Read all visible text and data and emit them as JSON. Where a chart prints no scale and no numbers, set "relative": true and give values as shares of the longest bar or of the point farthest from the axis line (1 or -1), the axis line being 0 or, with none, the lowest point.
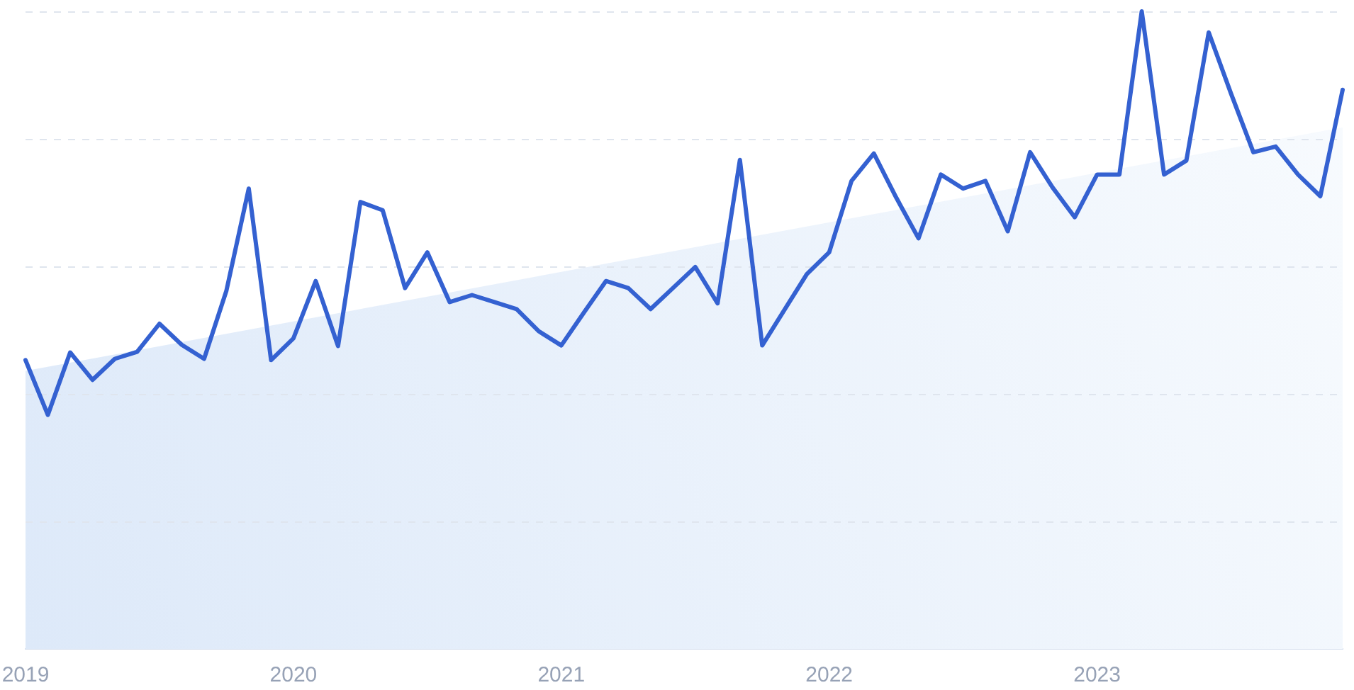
{
  "chart_data": {
    "type": "line",
    "relative": true,
    "x": [
      "2019-01",
      "2019-02",
      "2019-03",
      "2019-04",
      "2019-05",
      "2019-06",
      "2019-07",
      "2019-08",
      "2019-09",
      "2019-10",
      "2019-11",
      "2019-12",
      "2020-01",
      "2020-02",
      "2020-03",
      "2020-04",
      "2020-05",
      "2020-06",
      "2020-07",
      "2020-08",
      "2020-09",
      "2020-10",
      "2020-11",
      "2020-12",
      "2021-01",
      "2021-02",
      "2021-03",
      "2021-04",
      "2021-05",
      "2021-06",
      "2021-07",
      "2021-08",
      "2021-09",
      "2021-10",
      "2021-11",
      "2021-12",
      "2022-01",
      "2022-02",
      "2022-03",
      "2022-04",
      "2022-05",
      "2022-06",
      "2022-07",
      "2022-08",
      "2022-09",
      "2022-10",
      "2022-11",
      "2022-12",
      "2023-01",
      "2023-02",
      "2023-03",
      "2023-04",
      "2023-05",
      "2023-06",
      "2023-07",
      "2023-08",
      "2023-09",
      "2023-10",
      "2023-11",
      "2023-12"
    ],
    "xlim": [
      "2019-01",
      "2023-12"
    ],
    "xticks": [
      "2019",
      "2020",
      "2021",
      "2022",
      "2023"
    ],
    "grid": "y",
    "tick_labels": "x",
    "series": [
      {
        "type": "area",
        "color": "#dde9f9",
        "x": [
          "2019-01",
          "2023-12"
        ],
        "values": [
          0.436,
          0.818
        ]
      },
      {
        "color": "#3461d1",
        "values": [
          0.453,
          0.367,
          0.465,
          0.422,
          0.455,
          0.466,
          0.51,
          0.477,
          0.455,
          0.562,
          0.722,
          0.453,
          0.487,
          0.577,
          0.475,
          0.701,
          0.688,
          0.566,
          0.622,
          0.544,
          0.555,
          0.544,
          0.533,
          0.498,
          0.476,
          0.527,
          0.577,
          0.566,
          0.533,
          0.566,
          0.599,
          0.542,
          0.767,
          0.476,
          0.532,
          0.588,
          0.622,
          0.734,
          0.777,
          0.708,
          0.644,
          0.744,
          0.722,
          0.734,
          0.655,
          0.779,
          0.724,
          0.677,
          0.744,
          0.744,
          1,
          0.744,
          0.766,
          0.967,
          0.871,
          0.779,
          0.788,
          0.744,
          0.71,
          0.877
        ]
      }
    ]
  }
}
